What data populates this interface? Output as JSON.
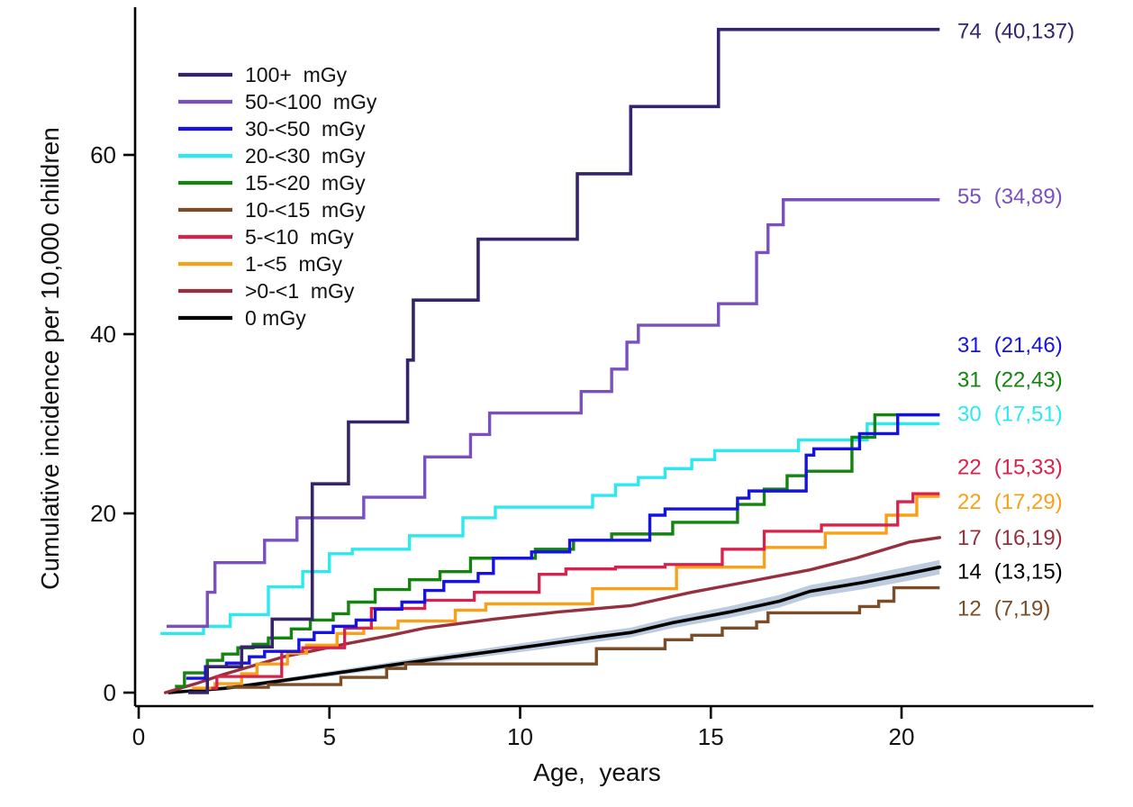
{
  "figure": {
    "background": "#ffffff",
    "axis_color": "#000000"
  },
  "chart_data": {
    "type": "line",
    "subtype": "cumulative-incidence-step-curves",
    "title": "",
    "xlabel": "Age,  years",
    "ylabel": "Cumulative incidence per 10,000 children",
    "xlim": [
      0,
      25
    ],
    "ylim": [
      0,
      76
    ],
    "x_ticks": [
      0,
      5,
      10,
      15,
      20
    ],
    "y_ticks": [
      0,
      20,
      40,
      60
    ],
    "grid": false,
    "legend_position": "top-left",
    "series": [
      {
        "id": "100plus",
        "legend_label": "100+  mGy",
        "color": "#35246b",
        "width": 3.6,
        "interp": "step",
        "z": 10,
        "final": {
          "value": "74",
          "ci": "(40,137)",
          "label_at": 73.8
        },
        "points": [
          [
            1.3,
            0
          ],
          [
            1.8,
            2.9
          ],
          [
            2.7,
            5.1
          ],
          [
            3.5,
            8.2
          ],
          [
            4.55,
            23.3
          ],
          [
            5.5,
            30.2
          ],
          [
            7.05,
            37.1
          ],
          [
            7.2,
            43.8
          ],
          [
            8.9,
            50.6
          ],
          [
            11.5,
            57.9
          ],
          [
            12.9,
            65.4
          ],
          [
            15.2,
            74
          ],
          [
            21,
            74
          ]
        ]
      },
      {
        "id": "50-100",
        "legend_label": "50-<100  mGy",
        "color": "#7a4fbe",
        "width": 3.4,
        "interp": "step",
        "z": 9,
        "final": {
          "value": "55",
          "ci": "(34,89)",
          "label_at": 55.4
        },
        "points": [
          [
            0.73,
            7.4
          ],
          [
            1.8,
            11.2
          ],
          [
            2.0,
            14.5
          ],
          [
            3.3,
            17.0
          ],
          [
            4.15,
            19.5
          ],
          [
            5.9,
            21.8
          ],
          [
            7.5,
            26.3
          ],
          [
            8.7,
            28.8
          ],
          [
            9.2,
            31.2
          ],
          [
            11.6,
            33.6
          ],
          [
            12.4,
            36.1
          ],
          [
            12.8,
            39.1
          ],
          [
            13.1,
            41.0
          ],
          [
            15.2,
            43.4
          ],
          [
            16.2,
            49.1
          ],
          [
            16.5,
            52.2
          ],
          [
            16.9,
            55
          ],
          [
            21,
            55
          ]
        ]
      },
      {
        "id": "30-50",
        "legend_label": "30-<50  mGy",
        "color": "#1612e3",
        "width": 3.4,
        "interp": "step",
        "z": 8,
        "final": {
          "value": "31",
          "ci": "(21,46)",
          "label_at": 38.8
        },
        "points": [
          [
            1.25,
            1.6
          ],
          [
            1.75,
            2.9
          ],
          [
            2.3,
            3.3
          ],
          [
            2.9,
            4.0
          ],
          [
            3.3,
            4.6
          ],
          [
            4.2,
            5.9
          ],
          [
            4.6,
            6.7
          ],
          [
            5.1,
            7.4
          ],
          [
            5.7,
            8.1
          ],
          [
            6.2,
            9.3
          ],
          [
            6.9,
            10.1
          ],
          [
            7.5,
            11.4
          ],
          [
            8.0,
            12.4
          ],
          [
            8.9,
            13.3
          ],
          [
            9.3,
            15.0
          ],
          [
            10.3,
            15.7
          ],
          [
            11.3,
            17.0
          ],
          [
            13.4,
            19.8
          ],
          [
            13.8,
            20.5
          ],
          [
            15.7,
            21.7
          ],
          [
            16.0,
            22.5
          ],
          [
            17.5,
            26.5
          ],
          [
            17.7,
            27.2
          ],
          [
            18.9,
            28.9
          ],
          [
            19.9,
            31
          ],
          [
            21,
            31
          ]
        ]
      },
      {
        "id": "20-30",
        "legend_label": "20-<30  mGy",
        "color": "#2ce9f0",
        "width": 3.4,
        "interp": "step",
        "z": 6,
        "final": {
          "value": "30",
          "ci": "(17,51)",
          "label_at": 31.1
        },
        "points": [
          [
            0.57,
            6.6
          ],
          [
            1.7,
            7.4
          ],
          [
            2.4,
            8.7
          ],
          [
            3.4,
            11.8
          ],
          [
            4.3,
            13.5
          ],
          [
            5.0,
            15.5
          ],
          [
            5.6,
            16.0
          ],
          [
            7.1,
            17.5
          ],
          [
            8.5,
            19.5
          ],
          [
            9.35,
            20.7
          ],
          [
            11.9,
            22.0
          ],
          [
            12.5,
            23.2
          ],
          [
            13.1,
            24.0
          ],
          [
            13.8,
            25.0
          ],
          [
            14.5,
            26.0
          ],
          [
            15.1,
            27.0
          ],
          [
            17.3,
            28.2
          ],
          [
            19.1,
            30
          ],
          [
            21,
            30
          ]
        ]
      },
      {
        "id": "15-20",
        "legend_label": "15-<20  mGy",
        "color": "#15830f",
        "width": 3.4,
        "interp": "step",
        "z": 7,
        "final": {
          "value": "31",
          "ci": "(22,43)",
          "label_at": 34.9
        },
        "points": [
          [
            0.95,
            0.7
          ],
          [
            1.2,
            2.2
          ],
          [
            1.8,
            3.6
          ],
          [
            2.2,
            4.3
          ],
          [
            2.6,
            5.0
          ],
          [
            3.0,
            5.4
          ],
          [
            3.4,
            6.1
          ],
          [
            4.0,
            7.1
          ],
          [
            4.5,
            8.1
          ],
          [
            5.1,
            8.8
          ],
          [
            5.5,
            10.1
          ],
          [
            6.2,
            11.5
          ],
          [
            7.1,
            12.6
          ],
          [
            7.9,
            13.5
          ],
          [
            8.7,
            15.0
          ],
          [
            10.4,
            16.0
          ],
          [
            11.4,
            17.0
          ],
          [
            12.4,
            17.7
          ],
          [
            14.0,
            19.0
          ],
          [
            15.7,
            21.0
          ],
          [
            16.4,
            22.7
          ],
          [
            17.0,
            24.2
          ],
          [
            17.5,
            24.7
          ],
          [
            18.7,
            28.5
          ],
          [
            19.3,
            31
          ],
          [
            21,
            31
          ]
        ]
      },
      {
        "id": "10-15",
        "legend_label": "10-<15  mGy",
        "color": "#7a4c27",
        "width": 3.4,
        "interp": "step",
        "z": 3,
        "final": {
          "value": "12",
          "ci": "(7,19)",
          "label_at": 9.4
        },
        "points": [
          [
            2.3,
            0.6
          ],
          [
            3.4,
            0.9
          ],
          [
            5.3,
            1.7
          ],
          [
            6.5,
            2.7
          ],
          [
            7.0,
            3.2
          ],
          [
            12.0,
            4.9
          ],
          [
            13.8,
            5.9
          ],
          [
            14.5,
            6.4
          ],
          [
            15.3,
            7.2
          ],
          [
            16.2,
            7.9
          ],
          [
            16.5,
            8.9
          ],
          [
            18.9,
            9.6
          ],
          [
            19.4,
            10.2
          ],
          [
            19.8,
            11.7
          ],
          [
            21,
            11.7
          ]
        ]
      },
      {
        "id": "5-10",
        "legend_label": "5-<10  mGy",
        "color": "#d8224c",
        "width": 3.3,
        "interp": "step",
        "z": 5,
        "final": {
          "value": "22",
          "ci": "(15,33)",
          "label_at": 25.2
        },
        "points": [
          [
            1.9,
            0.5
          ],
          [
            2.05,
            1.8
          ],
          [
            3.75,
            4.6
          ],
          [
            4.3,
            5.0
          ],
          [
            5.4,
            7.2
          ],
          [
            6.1,
            9.4
          ],
          [
            7.5,
            10.3
          ],
          [
            8.8,
            11.2
          ],
          [
            10.5,
            13.2
          ],
          [
            11.2,
            13.8
          ],
          [
            12.5,
            14.0
          ],
          [
            13.8,
            14.3
          ],
          [
            15.3,
            16.0
          ],
          [
            16.4,
            18.0
          ],
          [
            17.9,
            18.7
          ],
          [
            19.9,
            21.3
          ],
          [
            20.3,
            22.2
          ],
          [
            21,
            22.2
          ]
        ]
      },
      {
        "id": "1-5",
        "legend_label": "1-<5  mGy",
        "color": "#f7a01a",
        "width": 3.4,
        "interp": "step",
        "z": 4,
        "final": {
          "value": "22",
          "ci": "(17,29)",
          "label_at": 21.3
        },
        "points": [
          [
            1.4,
            0.5
          ],
          [
            2.0,
            1.0
          ],
          [
            2.7,
            2.1
          ],
          [
            3.1,
            3.2
          ],
          [
            3.9,
            4.4
          ],
          [
            4.4,
            5.3
          ],
          [
            5.2,
            6.6
          ],
          [
            5.9,
            7.2
          ],
          [
            6.8,
            8.0
          ],
          [
            8.3,
            9.2
          ],
          [
            9.1,
            9.9
          ],
          [
            11.9,
            11.6
          ],
          [
            14.1,
            14.0
          ],
          [
            16.4,
            16.2
          ],
          [
            18.0,
            17.8
          ],
          [
            19.6,
            19.8
          ],
          [
            20.4,
            21.9
          ],
          [
            21,
            21.9
          ]
        ]
      },
      {
        "id": "0-1",
        "legend_label": ">0-<1  mGy",
        "color": "#96303e",
        "width": 3.4,
        "interp": "linear",
        "z": 2,
        "final": {
          "value": "17",
          "ci": "(16,19)",
          "label_at": 17.3
        },
        "points": [
          [
            0.7,
            0
          ],
          [
            1.5,
            1.0
          ],
          [
            2.2,
            2.0
          ],
          [
            3.0,
            3.0
          ],
          [
            3.8,
            4.0
          ],
          [
            4.5,
            4.6
          ],
          [
            5.5,
            5.5
          ],
          [
            6.5,
            6.3
          ],
          [
            7.5,
            7.2
          ],
          [
            9.3,
            8.2
          ],
          [
            11.0,
            9.0
          ],
          [
            12.9,
            9.7
          ],
          [
            14.5,
            11.2
          ],
          [
            16.0,
            12.4
          ],
          [
            17.6,
            13.7
          ],
          [
            18.8,
            15.0
          ],
          [
            20.2,
            16.8
          ],
          [
            21,
            17.3
          ]
        ]
      },
      {
        "id": "0",
        "legend_label": "0 mGy",
        "color": "#000000",
        "width": 3.6,
        "interp": "linear",
        "z": 1,
        "final": {
          "value": "14",
          "ci": "(13,15)",
          "label_at": 13.5
        },
        "band": {
          "color": "#bdcbdf",
          "half": [
            0.1,
            0.2,
            0.25,
            0.3,
            0.35,
            0.45,
            0.5,
            0.55,
            0.55,
            0.6,
            0.65,
            0.7,
            0.7,
            0.75,
            0.8,
            0.8
          ]
        },
        "points": [
          [
            0.8,
            0
          ],
          [
            2.3,
            0.5
          ],
          [
            3.7,
            1.3
          ],
          [
            5.2,
            2.2
          ],
          [
            7.0,
            3.3
          ],
          [
            9.3,
            4.6
          ],
          [
            10.5,
            5.3
          ],
          [
            12.0,
            6.2
          ],
          [
            12.9,
            6.7
          ],
          [
            14.0,
            7.8
          ],
          [
            15.5,
            9.0
          ],
          [
            16.8,
            10.2
          ],
          [
            17.6,
            11.3
          ],
          [
            19.0,
            12.3
          ],
          [
            20.2,
            13.3
          ],
          [
            21,
            14
          ]
        ]
      }
    ]
  }
}
